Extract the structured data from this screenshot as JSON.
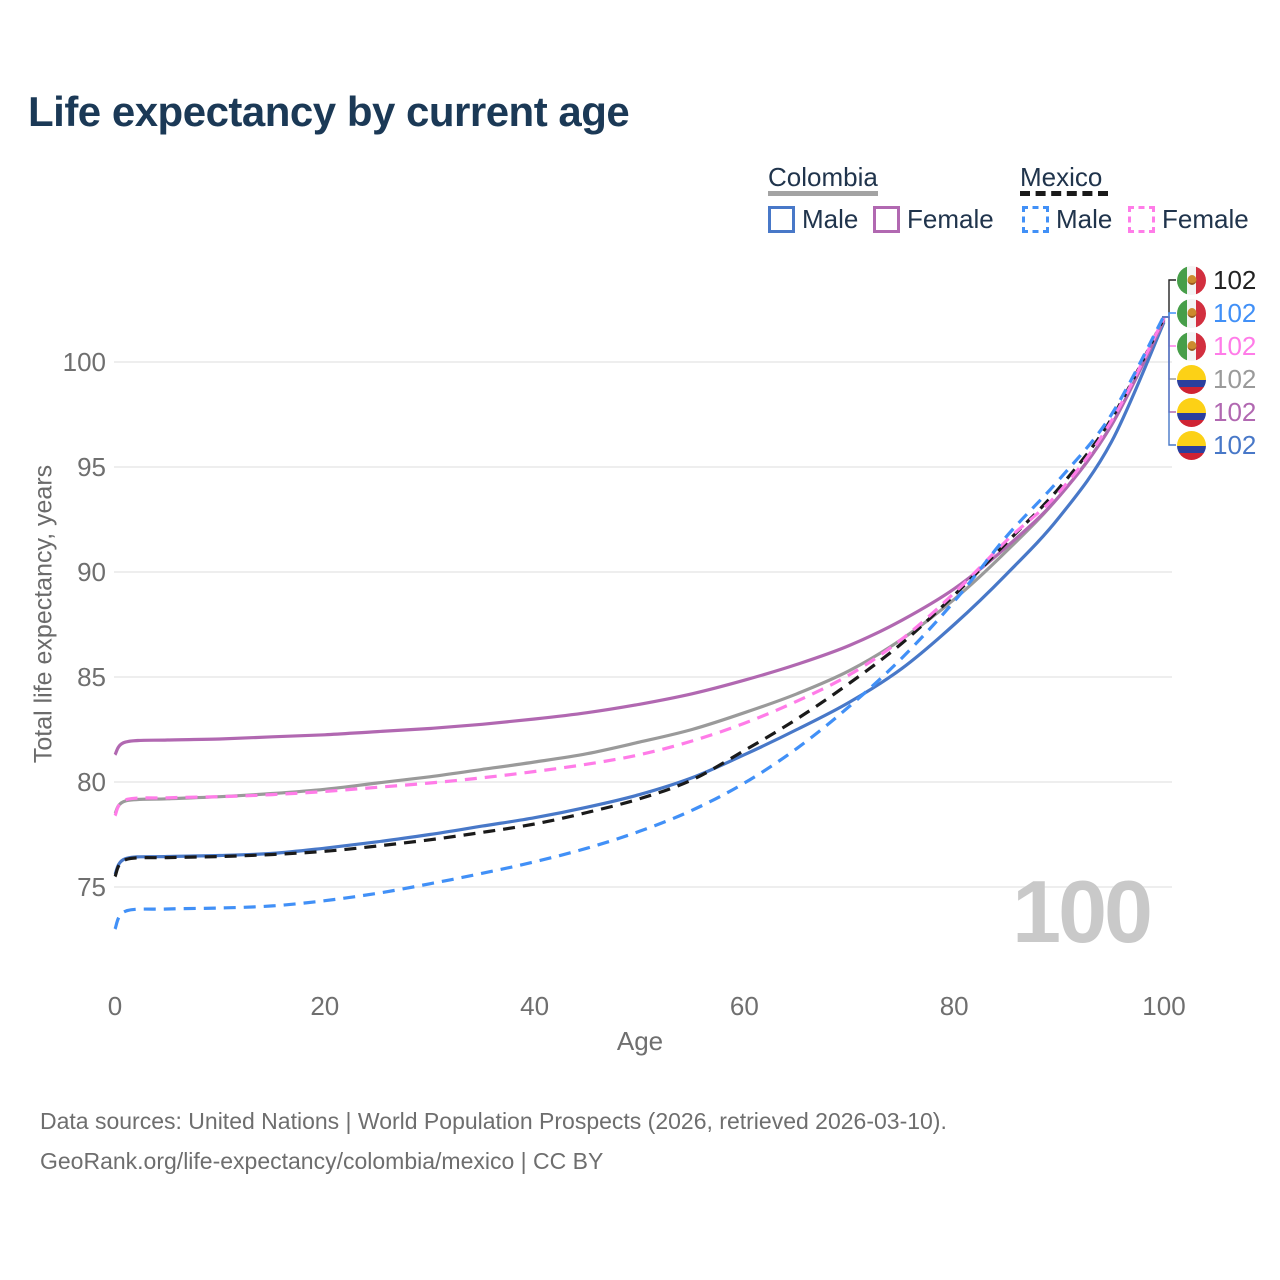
{
  "title": "Life expectancy by current age",
  "watermark": "100",
  "legend": {
    "colombia": {
      "label": "Colombia",
      "male": "Male",
      "female": "Female"
    },
    "mexico": {
      "label": "Mexico",
      "male": "Male",
      "female": "Female"
    }
  },
  "colors": {
    "colombia_male": "#4878c8",
    "colombia_female": "#b168b1",
    "colombia_all": "#9a9a9a",
    "mexico_male": "#4190f7",
    "mexico_female": "#ff7ce8",
    "mexico_all": "#1a1a1a",
    "grid": "#e9e9e9",
    "title_text": "#1b3956",
    "tick_text": "#6f6f6f",
    "watermark_text": "#c9c9c9"
  },
  "endpoint_labels": [
    {
      "country": "mexico",
      "flag": "mexico-flag-icon",
      "value": "102",
      "color": "#222222"
    },
    {
      "country": "mexico",
      "flag": "mexico-flag-icon",
      "value": "102",
      "color": "#4190f7"
    },
    {
      "country": "mexico",
      "flag": "mexico-flag-icon",
      "value": "102",
      "color": "#ff7ce8"
    },
    {
      "country": "colombia",
      "flag": "colombia-flag-icon",
      "value": "102",
      "color": "#9a9a9a"
    },
    {
      "country": "colombia",
      "flag": "colombia-flag-icon",
      "value": "102",
      "color": "#b168b1"
    },
    {
      "country": "colombia",
      "flag": "colombia-flag-icon",
      "value": "102",
      "color": "#4878c8"
    }
  ],
  "chart_data": {
    "type": "line",
    "title": "Life expectancy by current age",
    "xlabel": "Age",
    "ylabel": "Total life expectancy, years",
    "x": [
      0,
      1,
      5,
      10,
      15,
      20,
      25,
      30,
      35,
      40,
      45,
      50,
      55,
      60,
      65,
      70,
      75,
      80,
      85,
      90,
      95,
      100
    ],
    "xticks": [
      0,
      20,
      40,
      60,
      80,
      100
    ],
    "yticks": [
      75,
      80,
      85,
      90,
      95,
      100
    ],
    "xlim": [
      0,
      100
    ],
    "ylim": [
      72,
      103
    ],
    "grid": true,
    "legend_position": "top-right",
    "series": [
      {
        "name": "Colombia Male",
        "country": "Colombia",
        "sex": "Male",
        "style": "solid",
        "color": "#4878c8",
        "values": [
          75.6,
          76.35,
          76.45,
          76.5,
          76.6,
          76.85,
          77.15,
          77.5,
          77.9,
          78.3,
          78.8,
          79.4,
          80.2,
          81.3,
          82.5,
          83.8,
          85.4,
          87.5,
          89.9,
          92.6,
          96.2,
          101.9
        ]
      },
      {
        "name": "Colombia",
        "country": "Colombia",
        "sex": "Both sexes",
        "style": "solid",
        "color": "#9a9a9a",
        "values": [
          78.5,
          79.1,
          79.2,
          79.3,
          79.45,
          79.65,
          79.95,
          80.25,
          80.6,
          80.95,
          81.35,
          81.9,
          82.5,
          83.3,
          84.2,
          85.3,
          86.8,
          88.7,
          91.0,
          93.6,
          97.0,
          102.0
        ]
      },
      {
        "name": "Colombia Female",
        "country": "Colombia",
        "sex": "Female",
        "style": "solid",
        "color": "#b168b1",
        "values": [
          81.3,
          81.9,
          82.0,
          82.05,
          82.15,
          82.25,
          82.4,
          82.55,
          82.75,
          83.0,
          83.3,
          83.7,
          84.2,
          84.85,
          85.6,
          86.5,
          87.7,
          89.2,
          91.2,
          93.6,
          97.0,
          102.0
        ]
      },
      {
        "name": "Mexico",
        "country": "Mexico",
        "sex": "Both sexes",
        "style": "dashed",
        "color": "#1a1a1a",
        "values": [
          75.5,
          76.3,
          76.4,
          76.45,
          76.55,
          76.7,
          76.95,
          77.25,
          77.6,
          78.0,
          78.55,
          79.2,
          80.1,
          81.5,
          83.0,
          84.7,
          86.6,
          88.9,
          91.4,
          94.0,
          97.3,
          102.1
        ]
      },
      {
        "name": "Mexico Female",
        "country": "Mexico",
        "sex": "Female",
        "style": "dashed",
        "color": "#ff7ce8",
        "values": [
          78.4,
          79.15,
          79.25,
          79.3,
          79.4,
          79.55,
          79.75,
          79.95,
          80.2,
          80.5,
          80.85,
          81.3,
          81.95,
          82.8,
          83.85,
          85.1,
          86.8,
          89.0,
          91.5,
          93.8,
          97.2,
          102.1
        ]
      },
      {
        "name": "Mexico Male",
        "country": "Mexico",
        "sex": "Male",
        "style": "dashed",
        "color": "#4190f7",
        "values": [
          73.0,
          73.85,
          73.95,
          74.0,
          74.1,
          74.35,
          74.7,
          75.15,
          75.65,
          76.2,
          76.85,
          77.65,
          78.65,
          79.95,
          81.6,
          83.6,
          85.9,
          88.6,
          91.7,
          94.4,
          97.5,
          102.2
        ]
      }
    ]
  },
  "footer": {
    "line1": "Data sources: United Nations | World Population Prospects (2026, retrieved 2026-03-10).",
    "line2": "GeoRank.org/life-expectancy/colombia/mexico | CC BY"
  }
}
